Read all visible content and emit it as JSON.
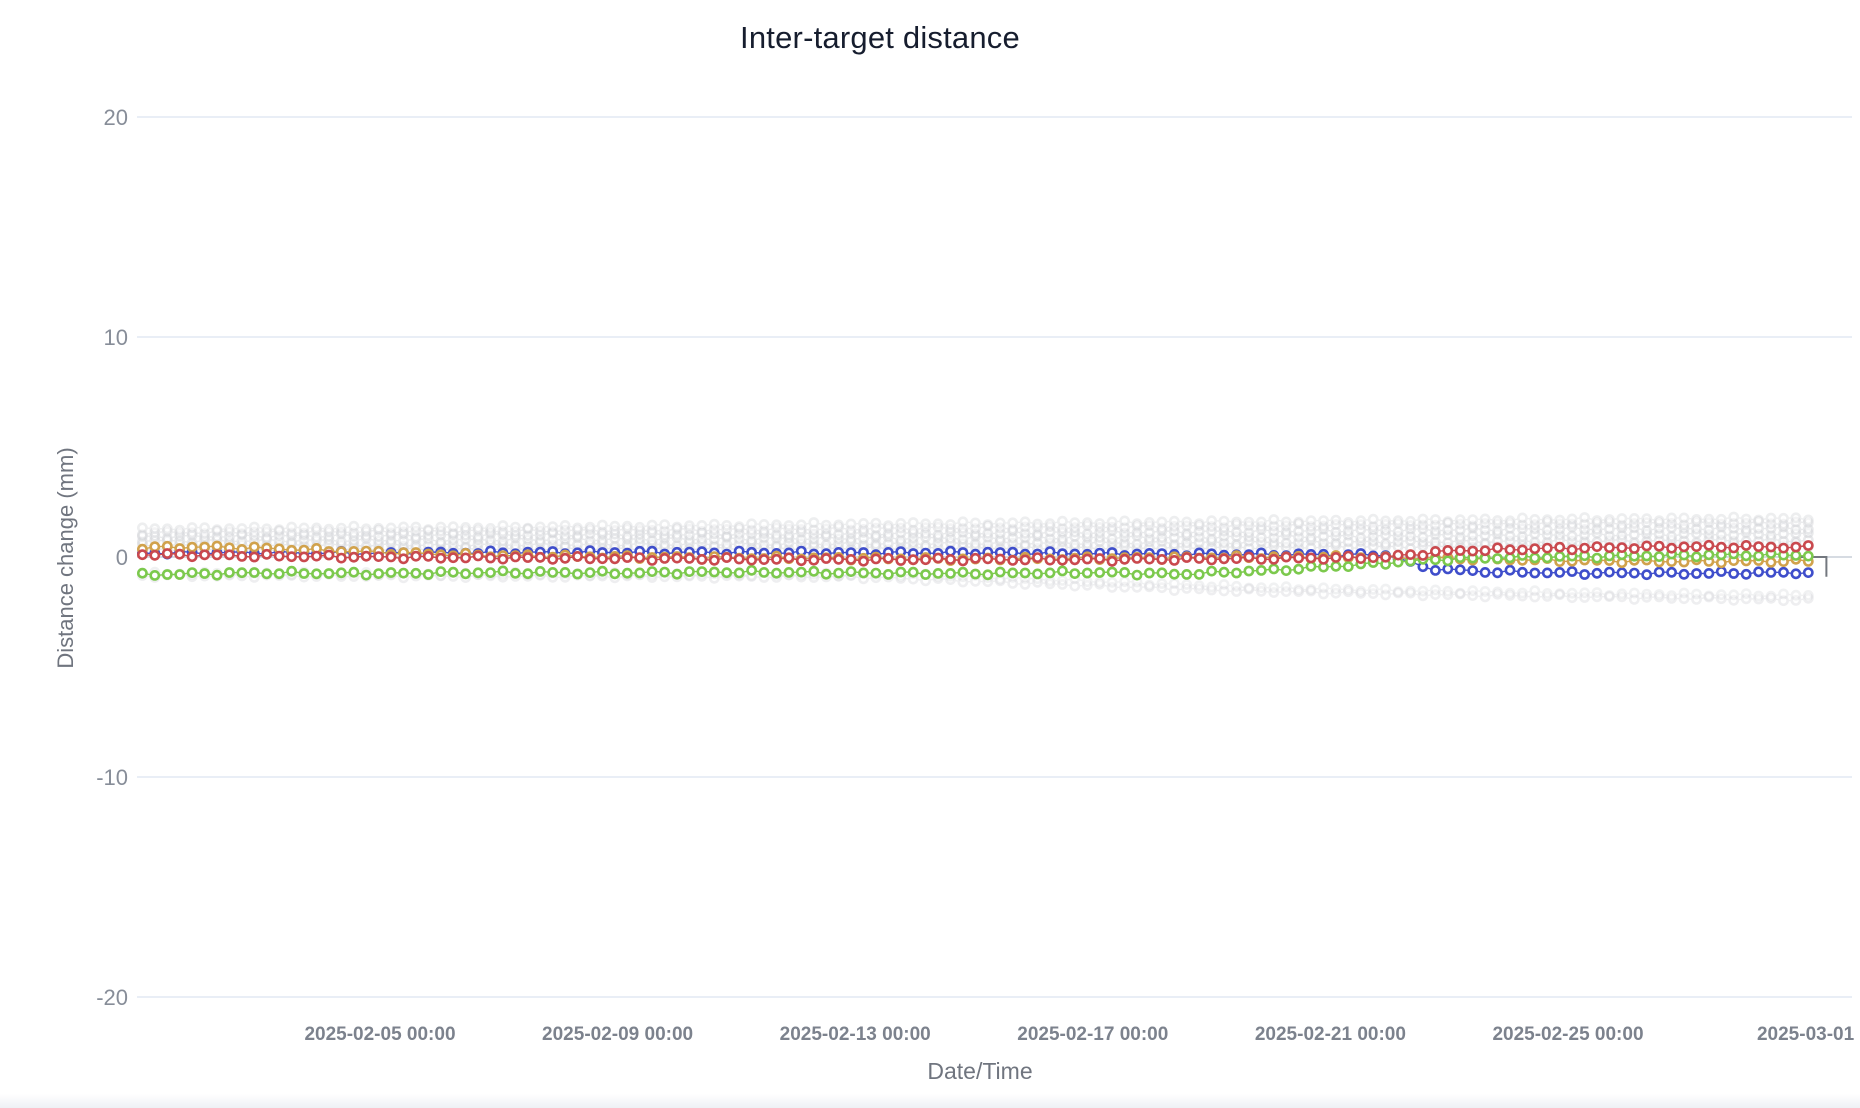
{
  "chart_data": {
    "type": "line",
    "title": "Inter-target distance",
    "xlabel": "Date/Time",
    "ylabel": "Distance change (mm)",
    "ylim": [
      -20,
      20
    ],
    "grid": true,
    "legend": "none",
    "marker": "open-circle",
    "x_start": "2025-02-01 00:00",
    "x_end": "2025-03-01 05:00",
    "sample_step_days": 0.2093,
    "yticks": [
      {
        "v": 20,
        "label": "20"
      },
      {
        "v": 10,
        "label": "10"
      },
      {
        "v": 0,
        "label": "0"
      },
      {
        "v": -10,
        "label": "-10"
      },
      {
        "v": -20,
        "label": "-20"
      }
    ],
    "xticks": [
      {
        "day": 4,
        "label": "2025-02-05 00:00"
      },
      {
        "day": 8,
        "label": "2025-02-09 00:00"
      },
      {
        "day": 12,
        "label": "2025-02-13 00:00"
      },
      {
        "day": 16,
        "label": "2025-02-17 00:00"
      },
      {
        "day": 20,
        "label": "2025-02-21 00:00"
      },
      {
        "day": 24,
        "label": "2025-02-25 00:00"
      },
      {
        "day": 28,
        "label": "2025-03-01"
      }
    ],
    "annotations": [
      {
        "name": "zero-line-end-bracket",
        "x_from_day": 27.85,
        "x_to_day": 28.35,
        "y_mm": 0.0,
        "drop_to_mm": -0.9,
        "color": "#73787f"
      }
    ],
    "series": [
      {
        "name": "baseline-gray-1",
        "color": "#d3d5d9",
        "opacity": 0.5,
        "anchors": [
          [
            0,
            0.32
          ],
          [
            6,
            0.35
          ],
          [
            12,
            0.4
          ],
          [
            18,
            0.42
          ],
          [
            24,
            0.5
          ],
          [
            28.2,
            0.52
          ]
        ]
      },
      {
        "name": "baseline-gray-2",
        "color": "#d3d5d9",
        "opacity": 0.5,
        "anchors": [
          [
            0,
            0.52
          ],
          [
            6,
            0.55
          ],
          [
            12,
            0.6
          ],
          [
            18,
            0.65
          ],
          [
            24,
            0.72
          ],
          [
            28.2,
            0.75
          ]
        ]
      },
      {
        "name": "baseline-gray-3",
        "color": "#d3d5d9",
        "opacity": 0.5,
        "anchors": [
          [
            0,
            0.72
          ],
          [
            6,
            0.78
          ],
          [
            12,
            0.85
          ],
          [
            18,
            0.9
          ],
          [
            24,
            1.0
          ],
          [
            28.2,
            1.05
          ]
        ]
      },
      {
        "name": "baseline-gray-4",
        "color": "#d3d5d9",
        "opacity": 0.5,
        "anchors": [
          [
            0,
            0.92
          ],
          [
            6,
            1.0
          ],
          [
            12,
            1.05
          ],
          [
            18,
            1.15
          ],
          [
            24,
            1.28
          ],
          [
            28.2,
            1.3
          ]
        ]
      },
      {
        "name": "baseline-gray-5",
        "color": "#d3d5d9",
        "opacity": 0.45,
        "anchors": [
          [
            0,
            1.1
          ],
          [
            6,
            1.18
          ],
          [
            12,
            1.28
          ],
          [
            18,
            1.4
          ],
          [
            24,
            1.52
          ],
          [
            28.2,
            1.55
          ]
        ]
      },
      {
        "name": "baseline-gray-6",
        "color": "#d3d5d9",
        "opacity": 0.4,
        "anchors": [
          [
            0,
            1.28
          ],
          [
            6,
            1.35
          ],
          [
            12,
            1.5
          ],
          [
            18,
            1.6
          ],
          [
            24,
            1.72
          ],
          [
            28.2,
            1.75
          ]
        ]
      },
      {
        "name": "declining-gray-1",
        "color": "#d3d5d9",
        "opacity": 0.38,
        "anchors": [
          [
            0,
            -0.85
          ],
          [
            8,
            -0.88
          ],
          [
            12,
            -0.9
          ],
          [
            14,
            -1.1
          ],
          [
            16,
            -1.3
          ],
          [
            18,
            -1.5
          ],
          [
            20,
            -1.62
          ],
          [
            22,
            -1.72
          ],
          [
            24,
            -1.8
          ],
          [
            26,
            -1.88
          ],
          [
            28.2,
            -1.95
          ]
        ]
      },
      {
        "name": "declining-gray-2",
        "color": "#d3d5d9",
        "opacity": 0.32,
        "anchors": [
          [
            0,
            -0.75
          ],
          [
            8,
            -0.78
          ],
          [
            13,
            -0.8
          ],
          [
            15,
            -1.0
          ],
          [
            17,
            -1.2
          ],
          [
            19,
            -1.4
          ],
          [
            21,
            -1.52
          ],
          [
            23,
            -1.6
          ],
          [
            25,
            -1.68
          ],
          [
            28.2,
            -1.75
          ]
        ]
      },
      {
        "name": "blue-pair",
        "color": "#3f4ecb",
        "opacity": 1,
        "anchors": [
          [
            0,
            0.18
          ],
          [
            2,
            0.2
          ],
          [
            4,
            0.17
          ],
          [
            6,
            0.2
          ],
          [
            8,
            0.22
          ],
          [
            10,
            0.2
          ],
          [
            12,
            0.18
          ],
          [
            14,
            0.2
          ],
          [
            16,
            0.15
          ],
          [
            18,
            0.12
          ],
          [
            20,
            0.1
          ],
          [
            21,
            0.08
          ],
          [
            21.6,
            -0.5
          ],
          [
            22.5,
            -0.66
          ],
          [
            24,
            -0.72
          ],
          [
            26,
            -0.74
          ],
          [
            28.2,
            -0.7
          ]
        ]
      },
      {
        "name": "orange-pair",
        "color": "#d1a24c",
        "opacity": 1,
        "anchors": [
          [
            0,
            0.42
          ],
          [
            1,
            0.46
          ],
          [
            2,
            0.4
          ],
          [
            3,
            0.3
          ],
          [
            4,
            0.22
          ],
          [
            5,
            0.12
          ],
          [
            6,
            0.06
          ],
          [
            8,
            0.0
          ],
          [
            10,
            -0.04
          ],
          [
            12,
            -0.06
          ],
          [
            14,
            -0.1
          ],
          [
            16,
            -0.06
          ],
          [
            18,
            -0.02
          ],
          [
            20,
            0.0
          ],
          [
            22,
            -0.06
          ],
          [
            24,
            -0.16
          ],
          [
            26,
            -0.2
          ],
          [
            28.2,
            -0.18
          ]
        ]
      },
      {
        "name": "green-pair",
        "color": "#7cc94d",
        "opacity": 1,
        "anchors": [
          [
            0,
            -0.8
          ],
          [
            2,
            -0.72
          ],
          [
            4,
            -0.75
          ],
          [
            6,
            -0.7
          ],
          [
            8,
            -0.72
          ],
          [
            10,
            -0.68
          ],
          [
            12,
            -0.72
          ],
          [
            14,
            -0.75
          ],
          [
            16,
            -0.7
          ],
          [
            17.5,
            -0.78
          ],
          [
            19,
            -0.6
          ],
          [
            20.5,
            -0.35
          ],
          [
            21.7,
            -0.12
          ],
          [
            23,
            -0.02
          ],
          [
            25,
            0.05
          ],
          [
            27,
            0.1
          ],
          [
            28.2,
            0.08
          ]
        ]
      },
      {
        "name": "red-pair",
        "color": "#c9494e",
        "opacity": 1,
        "anchors": [
          [
            0,
            0.12
          ],
          [
            2,
            0.05
          ],
          [
            4,
            0.0
          ],
          [
            6,
            -0.03
          ],
          [
            8,
            -0.06
          ],
          [
            10,
            -0.1
          ],
          [
            12,
            -0.12
          ],
          [
            14,
            -0.1
          ],
          [
            16,
            -0.12
          ],
          [
            18,
            -0.08
          ],
          [
            20,
            -0.04
          ],
          [
            21,
            0.0
          ],
          [
            22,
            0.28
          ],
          [
            23.5,
            0.38
          ],
          [
            25,
            0.44
          ],
          [
            26.5,
            0.48
          ],
          [
            28.2,
            0.44
          ]
        ]
      }
    ]
  }
}
